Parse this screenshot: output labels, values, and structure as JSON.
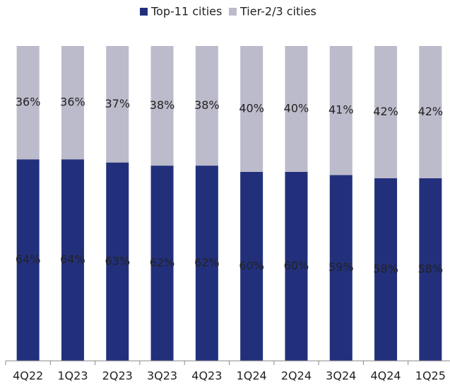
{
  "chart_data": {
    "type": "stacked_bar",
    "categories": [
      "4Q22",
      "1Q23",
      "2Q23",
      "3Q23",
      "4Q23",
      "1Q24",
      "2Q24",
      "3Q24",
      "4Q24",
      "1Q25"
    ],
    "series": [
      {
        "name": "Top-11 cities",
        "color": "#22307c",
        "values": [
          64,
          64,
          63,
          62,
          62,
          60,
          60,
          59,
          58,
          58
        ],
        "value_labels": [
          "64%",
          "64%",
          "63%",
          "62%",
          "62%",
          "60%",
          "60%",
          "59%",
          "58%",
          "58%"
        ]
      },
      {
        "name": "Tier-2/3 cities",
        "color": "#bcbbcb",
        "values": [
          36,
          36,
          37,
          38,
          38,
          40,
          40,
          41,
          42,
          42
        ],
        "value_labels": [
          "36%",
          "36%",
          "37%",
          "38%",
          "38%",
          "40%",
          "40%",
          "41%",
          "42%",
          "42%"
        ]
      }
    ],
    "ylim": [
      0,
      100
    ],
    "legend": "top"
  }
}
